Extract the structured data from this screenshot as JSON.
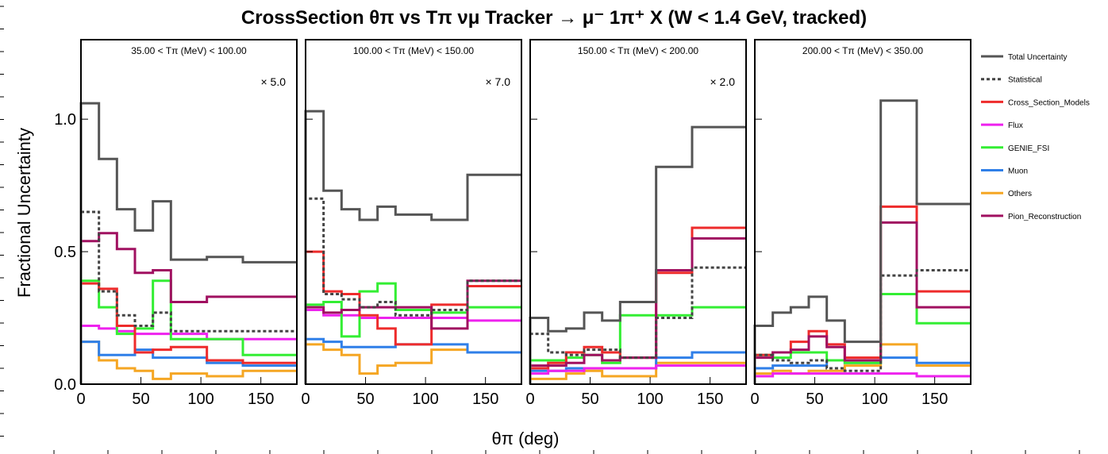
{
  "chart_data": {
    "type": "line",
    "subtype": "step-histogram",
    "title": "CrossSection  θπ vs Tπ  νμ Tracker → μ⁻ 1π⁺ X  (W < 1.4 GeV, tracked)",
    "xlabel": "θπ (deg)",
    "ylabel": "Fractional Uncertainty",
    "xlim": [
      0,
      180
    ],
    "ylim": [
      0,
      1.3
    ],
    "xticks": [
      "0",
      "50",
      "100",
      "150"
    ],
    "yticks": [
      "0.0",
      "0.5",
      "1.0"
    ],
    "bin_edges": [
      0,
      15,
      30,
      45,
      60,
      75,
      105,
      135,
      180
    ],
    "legend_position": "right",
    "legend": [
      {
        "key": "total",
        "label": "Total Uncertainty",
        "color": "#555555",
        "dashed": false
      },
      {
        "key": "stat",
        "label": "Statistical",
        "color": "#444444",
        "dashed": true
      },
      {
        "key": "xsec",
        "label": "Cross_Section_Models",
        "color": "#ee2b2b",
        "dashed": false
      },
      {
        "key": "flux",
        "label": "Flux",
        "color": "#ee22ee",
        "dashed": false
      },
      {
        "key": "fsi",
        "label": "GENIE_FSI",
        "color": "#33ee33",
        "dashed": false
      },
      {
        "key": "muon",
        "label": "Muon",
        "color": "#2f7fe8",
        "dashed": false
      },
      {
        "key": "others",
        "label": "Others",
        "color": "#f5a623",
        "dashed": false
      },
      {
        "key": "pion",
        "label": "Pion_Reconstruction",
        "color": "#a01060",
        "dashed": false
      }
    ],
    "panels": [
      {
        "label": "35.00 < Tπ (MeV) < 100.00",
        "scale": "× 5.0",
        "series": {
          "total": [
            1.06,
            0.85,
            0.66,
            0.58,
            0.69,
            0.47,
            0.48,
            0.46
          ],
          "stat": [
            0.65,
            0.35,
            0.26,
            0.22,
            0.27,
            0.2,
            0.2,
            0.2
          ],
          "xsec": [
            0.38,
            0.36,
            0.22,
            0.12,
            0.13,
            0.14,
            0.09,
            0.08
          ],
          "flux": [
            0.22,
            0.21,
            0.2,
            0.19,
            0.19,
            0.19,
            0.17,
            0.17
          ],
          "fsi": [
            0.39,
            0.29,
            0.19,
            0.21,
            0.39,
            0.17,
            0.17,
            0.11
          ],
          "muon": [
            0.16,
            0.11,
            0.11,
            0.13,
            0.1,
            0.1,
            0.08,
            0.07
          ],
          "others": [
            0.16,
            0.09,
            0.06,
            0.05,
            0.02,
            0.04,
            0.03,
            0.05
          ],
          "pion": [
            0.54,
            0.57,
            0.51,
            0.42,
            0.43,
            0.31,
            0.33,
            0.33
          ]
        }
      },
      {
        "label": "100.00 < Tπ (MeV) < 150.00",
        "scale": "× 7.0",
        "series": {
          "total": [
            1.03,
            0.73,
            0.66,
            0.62,
            0.67,
            0.64,
            0.62,
            0.79
          ],
          "stat": [
            0.7,
            0.34,
            0.32,
            0.29,
            0.31,
            0.26,
            0.28,
            0.39
          ],
          "xsec": [
            0.5,
            0.35,
            0.34,
            0.26,
            0.21,
            0.15,
            0.3,
            0.37
          ],
          "flux": [
            0.28,
            0.26,
            0.26,
            0.25,
            0.25,
            0.25,
            0.25,
            0.24
          ],
          "fsi": [
            0.3,
            0.31,
            0.18,
            0.35,
            0.38,
            0.28,
            0.27,
            0.29
          ],
          "muon": [
            0.17,
            0.16,
            0.14,
            0.14,
            0.14,
            0.15,
            0.15,
            0.12
          ],
          "others": [
            0.15,
            0.13,
            0.11,
            0.04,
            0.07,
            0.08,
            0.13,
            0.12
          ],
          "pion": [
            0.29,
            0.27,
            0.28,
            0.29,
            0.29,
            0.29,
            0.21,
            0.39
          ]
        }
      },
      {
        "label": "150.00 < Tπ (MeV) < 200.00",
        "scale": "× 2.0",
        "series": {
          "total": [
            0.25,
            0.2,
            0.21,
            0.27,
            0.24,
            0.31,
            0.82,
            0.97
          ],
          "stat": [
            0.19,
            0.12,
            0.11,
            0.13,
            0.13,
            0.1,
            0.25,
            0.44
          ],
          "xsec": [
            0.06,
            0.08,
            0.12,
            0.14,
            0.12,
            0.1,
            0.42,
            0.59
          ],
          "flux": [
            0.04,
            0.05,
            0.05,
            0.06,
            0.06,
            0.06,
            0.07,
            0.07
          ],
          "fsi": [
            0.09,
            0.09,
            0.1,
            0.11,
            0.08,
            0.26,
            0.26,
            0.29
          ],
          "muon": [
            0.05,
            0.05,
            0.06,
            0.06,
            0.06,
            0.06,
            0.1,
            0.12
          ],
          "others": [
            0.02,
            0.02,
            0.04,
            0.05,
            0.03,
            0.03,
            0.08,
            0.08
          ],
          "pion": [
            0.07,
            0.07,
            0.08,
            0.11,
            0.09,
            0.1,
            0.43,
            0.55
          ]
        }
      },
      {
        "label": "200.00 < Tπ (MeV) < 350.00",
        "scale": "",
        "series": {
          "total": [
            0.22,
            0.27,
            0.29,
            0.33,
            0.24,
            0.16,
            1.07,
            0.68
          ],
          "stat": [
            0.11,
            0.09,
            0.08,
            0.09,
            0.06,
            0.05,
            0.41,
            0.43
          ],
          "xsec": [
            0.11,
            0.12,
            0.16,
            0.2,
            0.15,
            0.1,
            0.67,
            0.35
          ],
          "flux": [
            0.03,
            0.04,
            0.04,
            0.04,
            0.04,
            0.04,
            0.04,
            0.03
          ],
          "fsi": [
            0.11,
            0.1,
            0.12,
            0.12,
            0.09,
            0.08,
            0.34,
            0.23
          ],
          "muon": [
            0.06,
            0.07,
            0.07,
            0.07,
            0.09,
            0.08,
            0.1,
            0.08
          ],
          "others": [
            0.04,
            0.05,
            0.04,
            0.05,
            0.05,
            0.07,
            0.15,
            0.07
          ],
          "pion": [
            0.1,
            0.12,
            0.13,
            0.18,
            0.14,
            0.09,
            0.61,
            0.29
          ]
        }
      }
    ]
  }
}
